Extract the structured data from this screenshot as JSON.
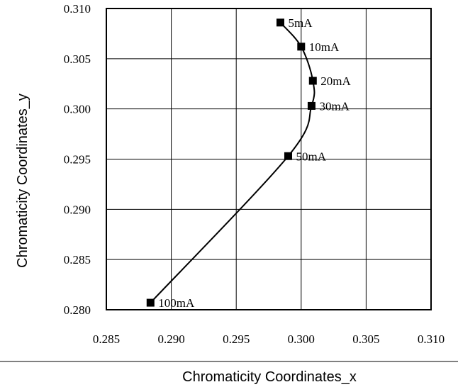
{
  "chart_data": {
    "type": "scatter",
    "xlabel": "Chromaticity Coordinates_x",
    "ylabel": "Chromaticity Coordinates_y",
    "xlim": [
      0.285,
      0.31
    ],
    "ylim": [
      0.28,
      0.31
    ],
    "x_ticks": [
      "0.285",
      "0.290",
      "0.295",
      "0.300",
      "0.305",
      "0.310"
    ],
    "y_ticks": [
      "0.280",
      "0.285",
      "0.290",
      "0.295",
      "0.300",
      "0.305",
      "0.310"
    ],
    "x_tick_values": [
      0.285,
      0.29,
      0.295,
      0.3,
      0.305,
      0.31
    ],
    "y_tick_values": [
      0.28,
      0.285,
      0.29,
      0.295,
      0.3,
      0.305,
      0.31
    ],
    "grid": true,
    "line_smoothed": true,
    "colors": {
      "line": "#000000",
      "marker": "#000000",
      "grid": "#000000"
    },
    "series": [
      {
        "points": [
          {
            "x": 0.2984,
            "y": 0.3086,
            "label": "5mA"
          },
          {
            "x": 0.3,
            "y": 0.3062,
            "label": "10mA"
          },
          {
            "x": 0.3009,
            "y": 0.3028,
            "label": "20mA"
          },
          {
            "x": 0.3008,
            "y": 0.3003,
            "label": "30mA"
          },
          {
            "x": 0.299,
            "y": 0.2953,
            "label": "50mA"
          },
          {
            "x": 0.2884,
            "y": 0.2807,
            "label": "100mA"
          }
        ]
      }
    ]
  }
}
